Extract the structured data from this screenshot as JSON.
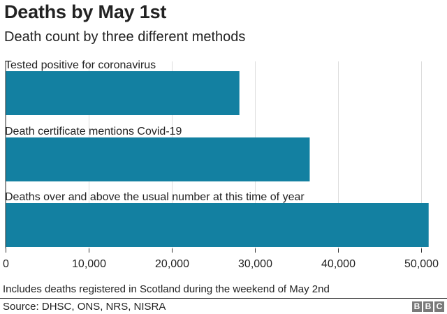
{
  "header": {
    "title": "Deaths by May 1st",
    "subtitle": "Death count by three different methods"
  },
  "chart_data": {
    "type": "bar",
    "orientation": "horizontal",
    "title": "Deaths by May 1st",
    "subtitle": "Death count by three different methods",
    "categories": [
      "Tested positive for coronavirus",
      "Death certificate mentions Covid-19",
      "Deaths over and above the usual number at this time of year"
    ],
    "values": [
      28131,
      36591,
      50900
    ],
    "xlim": [
      0,
      50000
    ],
    "xticks": [
      0,
      10000,
      20000,
      30000,
      40000,
      50000
    ],
    "xtick_labels": [
      "0",
      "10,000",
      "20,000",
      "30,000",
      "40,000",
      "50,000"
    ],
    "bar_color": "#1380a1",
    "grid": true,
    "legend": "none"
  },
  "footer": {
    "note": "Includes deaths registered in Scotland during the weekend of May 2nd",
    "source": "Source: DHSC, ONS, NRS, NISRA",
    "logo_letters": [
      "B",
      "B",
      "C"
    ]
  }
}
